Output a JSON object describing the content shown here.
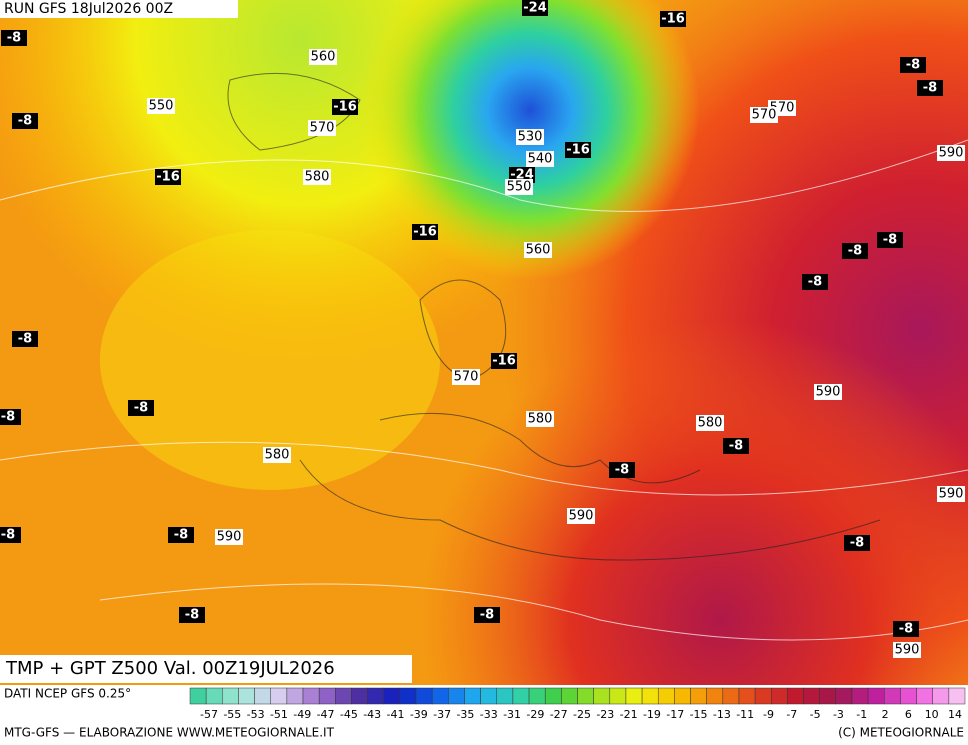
{
  "header": {
    "run": "RUN GFS 18Jul2026 00Z"
  },
  "footer": {
    "title": "TMP + GPT Z500 Val. 00Z19JUL2026",
    "source": "DATI NCEP GFS 0.25°",
    "credit": "MTG-GFS — ELABORAZIONE WWW.METEOGIORNALE.IT",
    "copyright": "(C) METEOGIORNALE"
  },
  "scale": {
    "labels": [
      -57,
      -55,
      -53,
      -51,
      -49,
      -47,
      -45,
      -43,
      -41,
      -39,
      -37,
      -35,
      -33,
      -31,
      -29,
      -27,
      -25,
      -23,
      -21,
      -19,
      -17,
      -15,
      -13,
      -11,
      -9,
      -7,
      -5,
      -3,
      -1,
      2,
      6,
      10,
      14
    ]
  },
  "isotherm_labels": [
    -8,
    -24,
    -16,
    -8,
    -8,
    -8,
    -16,
    -16,
    -16,
    -24,
    -16,
    -8,
    -8,
    -8,
    -8,
    -8,
    -8,
    -16,
    -8,
    -8,
    -8,
    -8,
    -8,
    -8,
    -8,
    -8
  ],
  "contour_labels": [
    560,
    550,
    570,
    580,
    570,
    570,
    590,
    530,
    540,
    550,
    560,
    570,
    580,
    580,
    590,
    580,
    590,
    590,
    590,
    590
  ]
}
